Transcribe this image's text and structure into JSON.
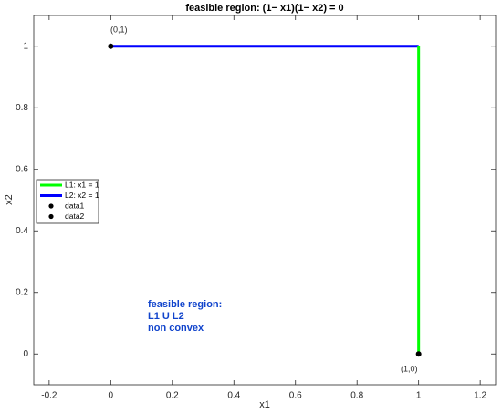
{
  "chart_data": {
    "type": "line",
    "title": "feasible region: (1− x1)(1− x2) = 0",
    "xlabel": "x1",
    "ylabel": "x2",
    "xlim": [
      -0.25,
      1.25
    ],
    "ylim": [
      -0.1,
      1.1
    ],
    "xticks": [
      -0.2,
      0,
      0.2,
      0.4,
      0.6,
      0.8,
      1,
      1.2
    ],
    "yticks": [
      0,
      0.2,
      0.4,
      0.6,
      0.8,
      1
    ],
    "grid": false,
    "legend": "west",
    "series": [
      {
        "name": "L1: x1 = 1",
        "color": "#00ff00",
        "x": [
          1,
          1
        ],
        "values": [
          0,
          1
        ]
      },
      {
        "name": "L2: x2 = 1",
        "color": "#0000ff",
        "x": [
          0,
          1
        ],
        "values": [
          1,
          1
        ]
      },
      {
        "name": "data1",
        "color": "#000000",
        "marker": "o",
        "x": [
          0
        ],
        "values": [
          1
        ]
      },
      {
        "name": "data2",
        "color": "#000000",
        "marker": "o",
        "x": [
          1
        ],
        "values": [
          0
        ]
      }
    ],
    "annotations": [
      "(0,1)",
      "(1,0)"
    ],
    "note": {
      "color": "#1144cc",
      "lines": [
        "feasible region:",
        "L1 U L2",
        "non convex"
      ]
    }
  }
}
